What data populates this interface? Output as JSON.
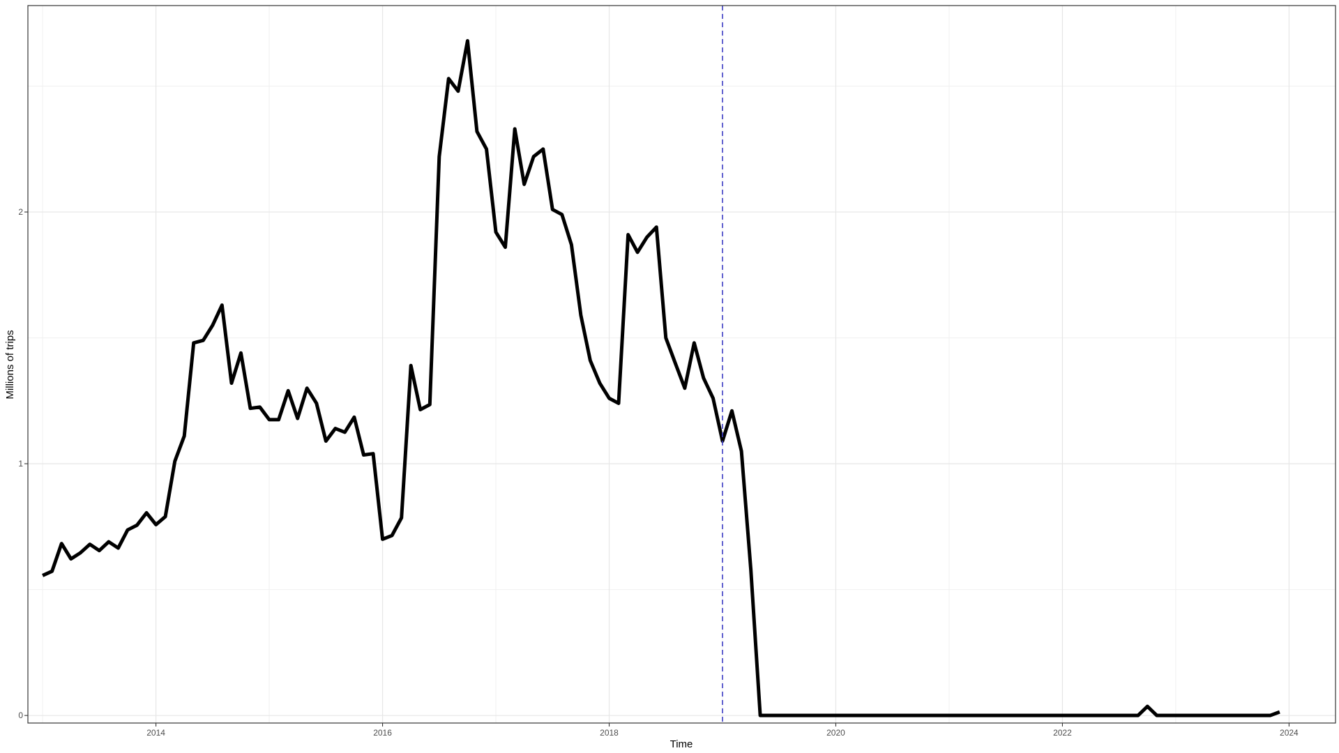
{
  "chart_data": {
    "type": "line",
    "title": "",
    "xlabel": "Time",
    "ylabel": "Millions of trips",
    "xlim": [
      2012.87,
      2024.41
    ],
    "ylim": [
      -0.03,
      2.82
    ],
    "x_ticks_major": [
      2014,
      2016,
      2018,
      2020,
      2022,
      2024
    ],
    "x_ticks_minor": [
      2013,
      2015,
      2017,
      2019,
      2021,
      2023
    ],
    "y_ticks_major": [
      0,
      1,
      2
    ],
    "y_ticks_minor": [
      0.5,
      1.5,
      2.5
    ],
    "grid": true,
    "legend": "none",
    "vline": {
      "x": 2019.0,
      "color": "#3b3bc4",
      "style": "dashed"
    },
    "series": [
      {
        "color": "#000000",
        "x": [
          2013.0,
          2013.083,
          2013.167,
          2013.25,
          2013.333,
          2013.417,
          2013.5,
          2013.583,
          2013.667,
          2013.75,
          2013.833,
          2013.917,
          2014.0,
          2014.083,
          2014.167,
          2014.25,
          2014.333,
          2014.417,
          2014.5,
          2014.583,
          2014.667,
          2014.75,
          2014.833,
          2014.917,
          2015.0,
          2015.083,
          2015.167,
          2015.25,
          2015.333,
          2015.417,
          2015.5,
          2015.583,
          2015.667,
          2015.75,
          2015.833,
          2015.917,
          2016.0,
          2016.083,
          2016.167,
          2016.25,
          2016.333,
          2016.417,
          2016.5,
          2016.583,
          2016.667,
          2016.75,
          2016.833,
          2016.917,
          2017.0,
          2017.083,
          2017.167,
          2017.25,
          2017.333,
          2017.417,
          2017.5,
          2017.583,
          2017.667,
          2017.75,
          2017.833,
          2017.917,
          2018.0,
          2018.083,
          2018.167,
          2018.25,
          2018.333,
          2018.417,
          2018.5,
          2018.583,
          2018.667,
          2018.75,
          2018.833,
          2018.917,
          2019.0,
          2019.083,
          2019.167,
          2019.25,
          2019.333,
          2019.417,
          2019.5,
          2022.667,
          2022.75,
          2022.833,
          2022.917,
          2023.833,
          2023.917
        ],
        "y": [
          0.556,
          0.573,
          0.683,
          0.622,
          0.646,
          0.68,
          0.655,
          0.69,
          0.665,
          0.737,
          0.756,
          0.805,
          0.758,
          0.79,
          1.01,
          1.11,
          1.48,
          1.49,
          1.55,
          1.63,
          1.32,
          1.44,
          1.22,
          1.225,
          1.175,
          1.175,
          1.29,
          1.18,
          1.3,
          1.24,
          1.09,
          1.14,
          1.125,
          1.185,
          1.035,
          1.04,
          0.7,
          0.715,
          0.785,
          1.39,
          1.215,
          1.235,
          2.22,
          2.53,
          2.48,
          2.68,
          2.32,
          2.25,
          1.92,
          1.86,
          2.33,
          2.11,
          2.22,
          2.25,
          2.01,
          1.99,
          1.87,
          1.59,
          1.41,
          1.32,
          1.26,
          1.24,
          1.91,
          1.84,
          1.9,
          1.94,
          1.5,
          1.4,
          1.3,
          1.48,
          1.34,
          1.26,
          1.09,
          1.21,
          1.05,
          0.58,
          0.0,
          0.0,
          0.0,
          0.0,
          0.036,
          0.0,
          0.0,
          0.0,
          0.014
        ]
      }
    ]
  }
}
